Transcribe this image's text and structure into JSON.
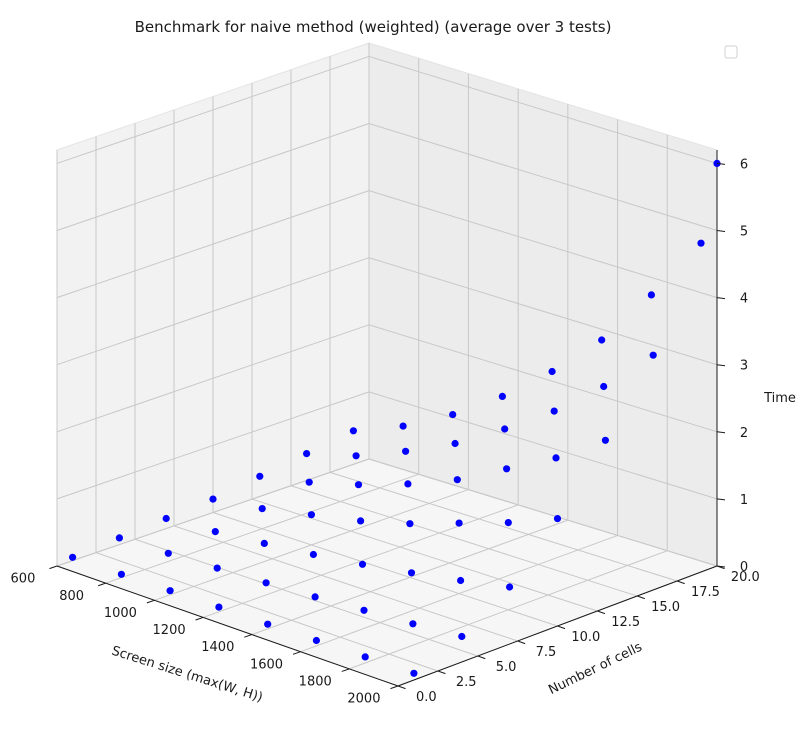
{
  "chart_data": {
    "type": "scatter",
    "projection": "3d",
    "title": "Benchmark for naive method (weighted) (average over 3 tests)",
    "xlabel": "Screen size (max(W, H))",
    "ylabel": "Number of cells",
    "zlabel": "Time",
    "xlim": [
      600,
      2000
    ],
    "ylim": [
      0,
      20
    ],
    "zlim": [
      0,
      6.2
    ],
    "xticks": [
      "600",
      "800",
      "1000",
      "1200",
      "1400",
      "1600",
      "1800",
      "2000"
    ],
    "yticks": [
      "0.0",
      "2.5",
      "5.0",
      "7.5",
      "10.0",
      "12.5",
      "15.0",
      "17.5",
      "20.0"
    ],
    "zticks": [
      "0",
      "1",
      "2",
      "3",
      "4",
      "5",
      "6"
    ],
    "grid": true,
    "legend": {
      "visible": true,
      "placement": "top-right",
      "entries": []
    },
    "marker_color": "#0000ff",
    "series": [
      {
        "points": [
          [
            600,
            1,
            0.05
          ],
          [
            800,
            1,
            0.05
          ],
          [
            1000,
            1,
            0.06
          ],
          [
            1200,
            1,
            0.07
          ],
          [
            1400,
            1,
            0.07
          ],
          [
            1600,
            1,
            0.08
          ],
          [
            1800,
            1,
            0.09
          ],
          [
            2000,
            1,
            0.1
          ],
          [
            600,
            4,
            0.1
          ],
          [
            800,
            4,
            0.12
          ],
          [
            1000,
            4,
            0.15
          ],
          [
            1200,
            4,
            0.18
          ],
          [
            1400,
            4,
            0.22
          ],
          [
            1600,
            4,
            0.27
          ],
          [
            1800,
            4,
            0.32
          ],
          [
            2000,
            4,
            0.38
          ],
          [
            600,
            7,
            0.15
          ],
          [
            800,
            7,
            0.2
          ],
          [
            1000,
            7,
            0.27
          ],
          [
            1200,
            7,
            0.35
          ],
          [
            1400,
            7,
            0.45
          ],
          [
            1600,
            7,
            0.57
          ],
          [
            1800,
            7,
            0.7
          ],
          [
            2000,
            7,
            0.85
          ],
          [
            600,
            10,
            0.2
          ],
          [
            800,
            10,
            0.3
          ],
          [
            1000,
            10,
            0.45
          ],
          [
            1200,
            10,
            0.6
          ],
          [
            1400,
            10,
            0.8
          ],
          [
            1600,
            10,
            1.05
          ],
          [
            1800,
            10,
            1.3
          ],
          [
            2000,
            10,
            1.6
          ],
          [
            600,
            13,
            0.3
          ],
          [
            800,
            13,
            0.45
          ],
          [
            1000,
            13,
            0.65
          ],
          [
            1200,
            13,
            0.9
          ],
          [
            1400,
            13,
            1.2
          ],
          [
            1600,
            13,
            1.6
          ],
          [
            1800,
            13,
            2.0
          ],
          [
            2000,
            13,
            2.5
          ],
          [
            600,
            16,
            0.4
          ],
          [
            800,
            16,
            0.6
          ],
          [
            1000,
            16,
            0.9
          ],
          [
            1200,
            16,
            1.25
          ],
          [
            1400,
            16,
            1.7
          ],
          [
            1600,
            16,
            2.2
          ],
          [
            1800,
            16,
            2.8
          ],
          [
            2000,
            16,
            3.5
          ],
          [
            600,
            19,
            0.5
          ],
          [
            800,
            19,
            0.8
          ],
          [
            1000,
            19,
            1.2
          ],
          [
            1200,
            19,
            1.7
          ],
          [
            1400,
            19,
            2.3
          ],
          [
            1600,
            19,
            3.0
          ],
          [
            1800,
            19,
            3.9
          ],
          [
            2000,
            19,
            4.9
          ],
          [
            2000,
            20,
            6.0
          ]
        ]
      }
    ]
  }
}
